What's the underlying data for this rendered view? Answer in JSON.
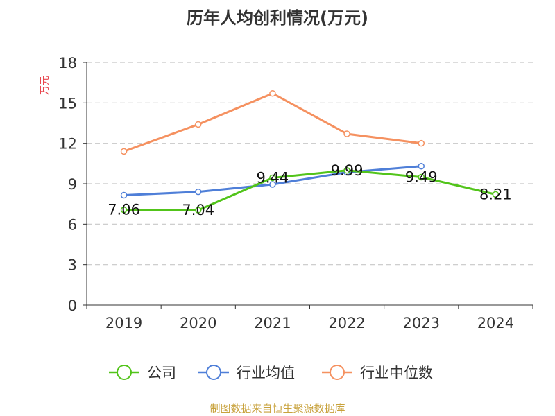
{
  "chart_data": {
    "type": "line",
    "title": "历年人均创利情况(万元)",
    "unit_label": "万元",
    "categories": [
      "2019",
      "2020",
      "2021",
      "2022",
      "2023",
      "2024"
    ],
    "ylim": [
      0,
      18
    ],
    "yticks": [
      0,
      3,
      6,
      9,
      12,
      15,
      18
    ],
    "grid": true,
    "legend_position": "bottom",
    "series": [
      {
        "name": "公司",
        "color": "#52c41a",
        "values": [
          7.06,
          7.04,
          9.44,
          9.99,
          9.49,
          8.21
        ],
        "labels": [
          "7.06",
          "7.04",
          "9.44",
          "9.99",
          "9.49",
          "8.21"
        ]
      },
      {
        "name": "行业均值",
        "color": "#4f7fd8",
        "values": [
          8.15,
          8.4,
          8.95,
          9.85,
          10.3,
          null
        ]
      },
      {
        "name": "行业中位数",
        "color": "#f59160",
        "values": [
          11.4,
          13.4,
          15.7,
          12.7,
          12.0,
          null
        ]
      }
    ]
  },
  "source": "制图数据来自恒生聚源数据库"
}
